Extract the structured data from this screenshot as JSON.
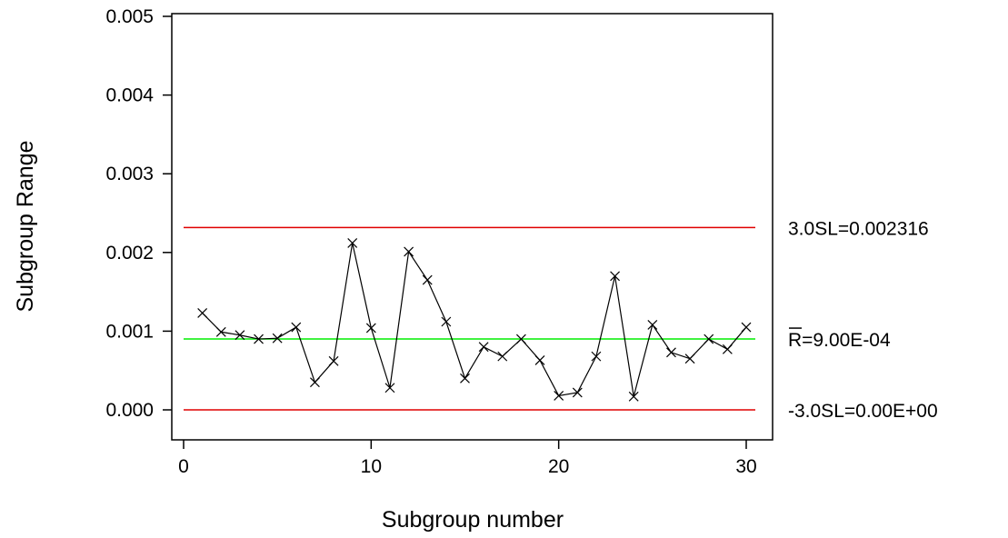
{
  "chart_data": {
    "type": "line",
    "title": "",
    "xlabel": "Subgroup number",
    "ylabel": "Subgroup Range",
    "xlim": [
      -0.5,
      31
    ],
    "ylim": [
      0,
      0.005
    ],
    "x_ticks": [
      0,
      10,
      20,
      30
    ],
    "x_tick_labels": [
      "0",
      "10",
      "20",
      "30"
    ],
    "y_ticks": [
      0,
      0.001,
      0.002,
      0.003,
      0.004,
      0.005
    ],
    "y_tick_labels": [
      "0.000",
      "0.001",
      "0.002",
      "0.003",
      "0.004",
      "0.005"
    ],
    "grid": false,
    "legend": "none",
    "series": [
      {
        "x": [
          1,
          2,
          3,
          4,
          5,
          6,
          7,
          8,
          9,
          10,
          11,
          12,
          13,
          14,
          15,
          16,
          17,
          18,
          19,
          20,
          21,
          22,
          23,
          24,
          25,
          26,
          27,
          28,
          29,
          30
        ],
        "values": [
          0.00123,
          0.00099,
          0.00095,
          0.0009,
          0.00091,
          0.00105,
          0.00035,
          0.00062,
          0.00212,
          0.00104,
          0.00028,
          0.00201,
          0.00165,
          0.00112,
          0.0004,
          0.0008,
          0.00068,
          0.0009,
          0.00063,
          0.00018,
          0.00022,
          0.00068,
          0.0017,
          0.00017,
          0.00108,
          0.00073,
          0.00065,
          0.0009,
          0.00077,
          0.00105
        ],
        "color": "#000000",
        "marker": "x"
      }
    ],
    "control_lines": [
      {
        "value": 0.002316,
        "color": "#e00000",
        "label": "3.0SL=0.002316"
      },
      {
        "value": 0.0009,
        "color": "#00ee00",
        "label_symbol": "R",
        "label": "=9.00E-04"
      },
      {
        "value": 0.0,
        "color": "#e00000",
        "label": "-3.0SL=0.00E+00"
      }
    ]
  }
}
